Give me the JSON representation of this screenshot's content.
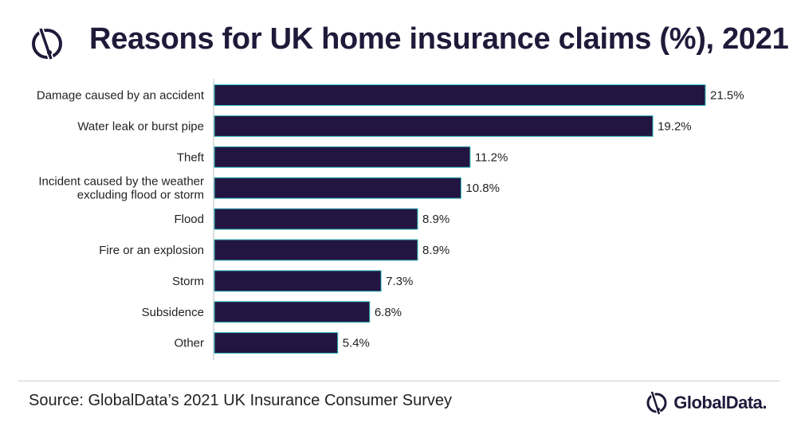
{
  "title": "Reasons for UK home insurance claims (%), 2021",
  "source": "Source: GlobalData’s 2021 UK Insurance Consumer Survey",
  "brand": "GlobalData.",
  "colors": {
    "bar": "#221541",
    "bar_edge": "#39c2c2",
    "title": "#1e1b3a"
  },
  "chart_data": {
    "type": "bar",
    "orientation": "horizontal",
    "categories": [
      [
        "Damage caused by an accident"
      ],
      [
        "Water leak or burst pipe"
      ],
      [
        "Theft"
      ],
      [
        "Incident caused by the weather",
        "excluding flood or storm"
      ],
      [
        "Flood"
      ],
      [
        "Fire or an explosion"
      ],
      [
        "Storm"
      ],
      [
        "Subsidence"
      ],
      [
        "Other"
      ]
    ],
    "values": [
      21.5,
      19.2,
      11.2,
      10.8,
      8.9,
      8.9,
      7.3,
      6.8,
      5.4
    ],
    "value_labels": [
      "21.5%",
      "19.2%",
      "11.2%",
      "10.8%",
      "8.9%",
      "8.9%",
      "7.3%",
      "6.8%",
      "5.4%"
    ],
    "xlim": [
      0,
      21.5
    ],
    "grid": false,
    "legend": "none"
  }
}
